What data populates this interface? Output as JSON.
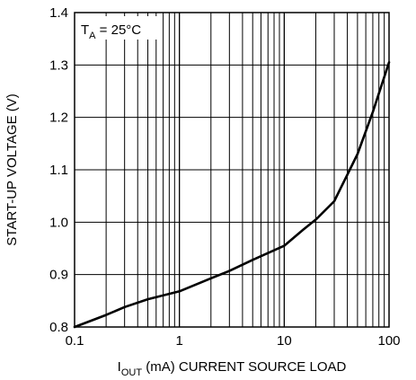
{
  "chart_data": {
    "type": "line",
    "title": "",
    "xlabel": {
      "main": "I",
      "sub": "OUT",
      "rest": " (mA) CURRENT SOURCE LOAD"
    },
    "ylabel": "START-UP VOLTAGE (V)",
    "x_scale": "log",
    "xlim": [
      0.1,
      100
    ],
    "ylim": [
      0.8,
      1.4
    ],
    "x_ticks": [
      0.1,
      1,
      10,
      100
    ],
    "x_tick_labels": [
      "0.1",
      "1",
      "10",
      "100"
    ],
    "y_ticks": [
      0.8,
      0.9,
      1.0,
      1.1,
      1.2,
      1.3,
      1.4
    ],
    "y_tick_labels": [
      "0.8",
      "0.9",
      "1.0",
      "1.1",
      "1.2",
      "1.3",
      "1.4"
    ],
    "grid": true,
    "annotation": {
      "main": "T",
      "sub": "A",
      "rest": " = 25°C"
    },
    "series": [
      {
        "x": [
          0.1,
          0.2,
          0.3,
          0.5,
          1,
          2,
          3,
          5,
          10,
          15,
          20,
          30,
          50,
          70,
          100
        ],
        "y": [
          0.8,
          0.823,
          0.838,
          0.853,
          0.868,
          0.893,
          0.907,
          0.928,
          0.955,
          0.985,
          1.005,
          1.04,
          1.13,
          1.21,
          1.305
        ],
        "color": "#000000"
      }
    ]
  }
}
